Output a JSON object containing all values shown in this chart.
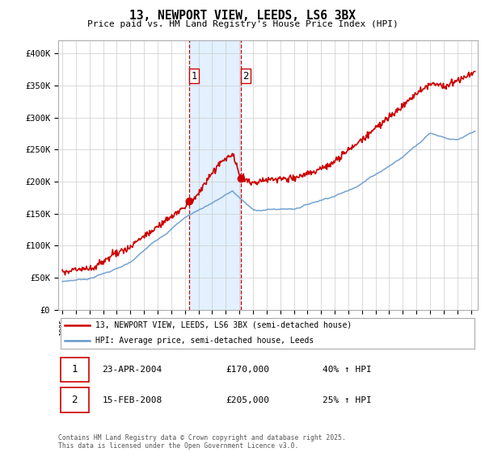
{
  "title": "13, NEWPORT VIEW, LEEDS, LS6 3BX",
  "subtitle": "Price paid vs. HM Land Registry's House Price Index (HPI)",
  "ylabel_ticks": [
    "£0",
    "£50K",
    "£100K",
    "£150K",
    "£200K",
    "£250K",
    "£300K",
    "£350K",
    "£400K"
  ],
  "ytick_values": [
    0,
    50000,
    100000,
    150000,
    200000,
    250000,
    300000,
    350000,
    400000
  ],
  "ylim": [
    0,
    420000
  ],
  "xlim_start": 1994.7,
  "xlim_end": 2025.5,
  "sale1": {
    "year": 2004.3,
    "price": 170000,
    "label": "1"
  },
  "sale2": {
    "year": 2008.1,
    "price": 205000,
    "label": "2"
  },
  "shade_x0": 2004.3,
  "shade_x1": 2008.1,
  "legend_entries": [
    {
      "label": "13, NEWPORT VIEW, LEEDS, LS6 3BX (semi-detached house)",
      "color": "#cc0000"
    },
    {
      "label": "HPI: Average price, semi-detached house, Leeds",
      "color": "#6699cc"
    }
  ],
  "table_rows": [
    {
      "num": "1",
      "date": "23-APR-2004",
      "price": "£170,000",
      "hpi": "40% ↑ HPI"
    },
    {
      "num": "2",
      "date": "15-FEB-2008",
      "price": "£205,000",
      "hpi": "25% ↑ HPI"
    }
  ],
  "footer": "Contains HM Land Registry data © Crown copyright and database right 2025.\nThis data is licensed under the Open Government Licence v3.0.",
  "red_color": "#cc0000",
  "blue_color": "#6699cc",
  "shade_color": "#ddeeff",
  "background_color": "#ffffff",
  "fig_width": 6.0,
  "fig_height": 5.6
}
